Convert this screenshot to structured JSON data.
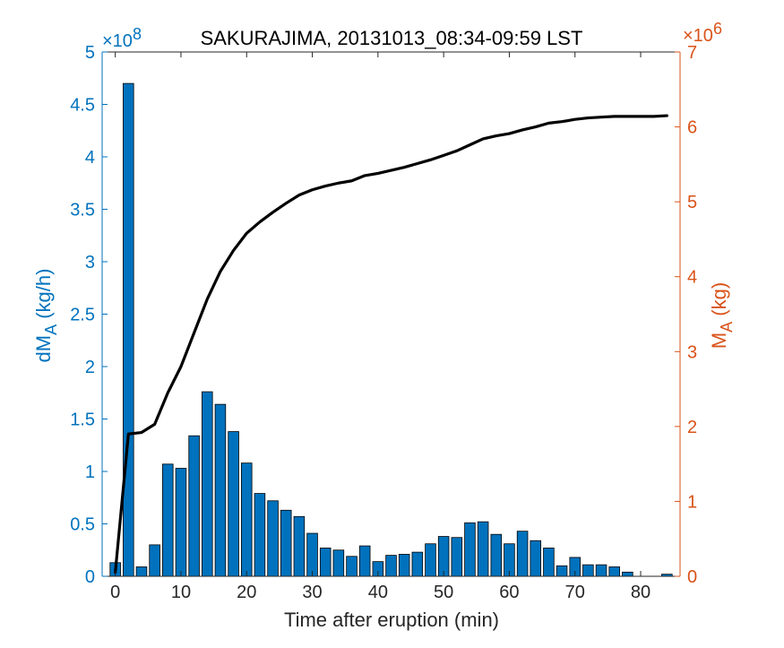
{
  "chart_data": {
    "type": "bar",
    "title": "SAKURAJIMA, 20131013_08:34-09:59 LST",
    "xlabel": "Time after eruption (min)",
    "xlim": [
      -2,
      86
    ],
    "xticks": [
      0,
      10,
      20,
      30,
      40,
      50,
      60,
      70,
      80
    ],
    "left_axis": {
      "label_main": "dM",
      "label_sub": "A",
      "label_unit": " (kg/h)",
      "multiplier_base": "×10",
      "multiplier_exp": "8",
      "ylim": [
        0,
        5
      ],
      "ticks": [
        "0",
        "0.5",
        "1",
        "1.5",
        "2",
        "2.5",
        "3",
        "3.5",
        "4",
        "4.5",
        "5"
      ],
      "color": "#0072BD"
    },
    "right_axis": {
      "label_main": "M",
      "label_sub": "A",
      "label_unit": " (kg)",
      "multiplier_base": "×10",
      "multiplier_exp": "6",
      "ylim": [
        0,
        7
      ],
      "ticks": [
        "0",
        "1",
        "2",
        "3",
        "4",
        "5",
        "6",
        "7"
      ],
      "color": "#D95319"
    },
    "bars": {
      "axis": "left",
      "color": "#0072BD",
      "x": [
        0,
        2,
        4,
        6,
        8,
        10,
        12,
        14,
        16,
        18,
        20,
        22,
        24,
        26,
        28,
        30,
        32,
        34,
        36,
        38,
        40,
        42,
        44,
        46,
        48,
        50,
        52,
        54,
        56,
        58,
        60,
        62,
        64,
        66,
        68,
        70,
        72,
        74,
        76,
        78,
        80,
        82,
        84
      ],
      "values": [
        0.13,
        4.7,
        0.09,
        0.3,
        1.07,
        1.03,
        1.34,
        1.76,
        1.64,
        1.38,
        1.08,
        0.79,
        0.72,
        0.63,
        0.57,
        0.41,
        0.27,
        0.25,
        0.19,
        0.29,
        0.14,
        0.2,
        0.21,
        0.23,
        0.31,
        0.38,
        0.37,
        0.51,
        0.52,
        0.4,
        0.31,
        0.43,
        0.34,
        0.27,
        0.1,
        0.18,
        0.11,
        0.11,
        0.09,
        0.04,
        0,
        0,
        0.02
      ]
    },
    "line": {
      "axis": "right",
      "color": "#000000",
      "x": [
        0,
        2,
        4,
        6,
        8,
        10,
        12,
        14,
        16,
        18,
        20,
        22,
        24,
        26,
        28,
        30,
        32,
        34,
        36,
        38,
        40,
        42,
        44,
        46,
        48,
        50,
        52,
        54,
        56,
        58,
        60,
        62,
        64,
        66,
        68,
        70,
        72,
        74,
        76,
        78,
        80,
        82,
        84
      ],
      "y": [
        0.05,
        1.9,
        1.92,
        2.03,
        2.45,
        2.8,
        3.25,
        3.7,
        4.07,
        4.35,
        4.58,
        4.73,
        4.86,
        4.98,
        5.09,
        5.16,
        5.21,
        5.25,
        5.28,
        5.35,
        5.38,
        5.42,
        5.46,
        5.51,
        5.56,
        5.62,
        5.68,
        5.76,
        5.84,
        5.88,
        5.91,
        5.96,
        6.0,
        6.05,
        6.07,
        6.1,
        6.12,
        6.13,
        6.14,
        6.14,
        6.14,
        6.14,
        6.15
      ]
    }
  }
}
